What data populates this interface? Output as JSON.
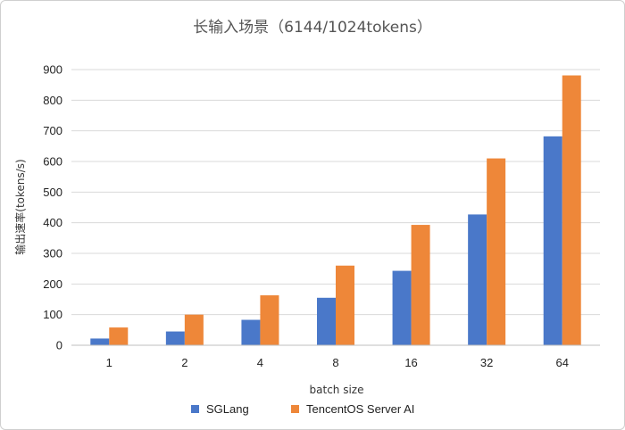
{
  "chart_data": {
    "type": "bar",
    "title": "长输入场景（6144/1024tokens）",
    "xlabel": "batch size",
    "ylabel": "输出速率(tokens/s)",
    "categories": [
      "1",
      "2",
      "4",
      "8",
      "16",
      "32",
      "64"
    ],
    "ylim": [
      0,
      900
    ],
    "yticks": [
      0,
      100,
      200,
      300,
      400,
      500,
      600,
      700,
      800,
      900
    ],
    "grid": true,
    "legend_position": "bottom",
    "series": [
      {
        "name": "SGLang",
        "color": "#4a78c9",
        "values": [
          22,
          45,
          83,
          155,
          243,
          427,
          682
        ]
      },
      {
        "name": "TencentOS Server AI",
        "color": "#ee8739",
        "values": [
          58,
          100,
          163,
          260,
          393,
          610,
          881
        ]
      }
    ]
  }
}
